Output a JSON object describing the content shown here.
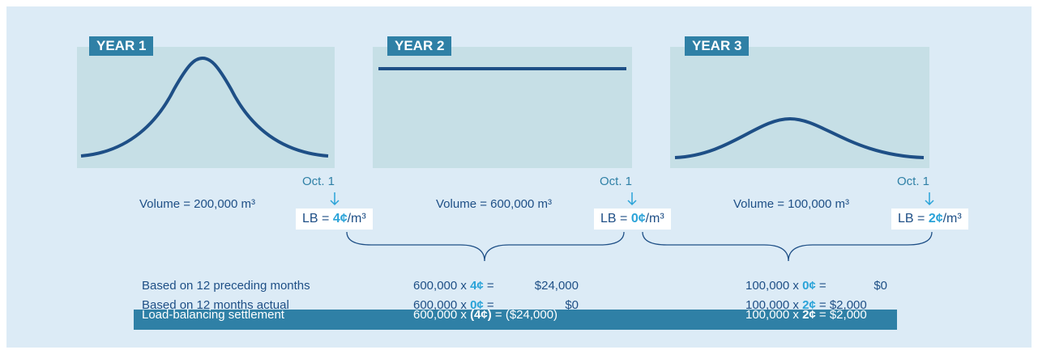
{
  "years": [
    {
      "label": "YEAR 1",
      "date": "Oct. 1",
      "volume": "Volume = 200,000 m³",
      "lb": {
        "prefix": "LB = ",
        "rate": "4¢",
        "unit": "/m³"
      }
    },
    {
      "label": "YEAR 2",
      "date": "Oct. 1",
      "volume": "Volume = 600,000 m³",
      "lb": {
        "prefix": "LB = ",
        "rate": "0¢",
        "unit": "/m³"
      }
    },
    {
      "label": "YEAR 3",
      "date": "Oct. 1",
      "volume": "Volume = 100,000 m³",
      "lb": {
        "prefix": "LB = ",
        "rate": "2¢",
        "unit": "/m³"
      }
    }
  ],
  "rows": [
    {
      "label": "Based on 12 preceding months",
      "calc1": {
        "prefix": "600,000 x ",
        "rate": "4¢",
        "suffix": " =",
        "result": "$24,000"
      },
      "calc2": {
        "prefix": "100,000 x ",
        "rate": "0¢",
        "suffix": " =",
        "result": "$0"
      }
    },
    {
      "label": "Based on 12 months actual",
      "calc1": {
        "prefix": "600,000 x ",
        "rate": "0¢",
        "suffix": " =",
        "result": "$0"
      },
      "calc2": {
        "prefix": "100,000 x ",
        "rate": "2¢",
        "suffix": " = $2,000"
      }
    },
    {
      "label": "Load-balancing settlement",
      "calc1": {
        "prefix": "600,000 x ",
        "rate": "(4¢)",
        "suffix": " = ($24,000)"
      },
      "calc2": {
        "prefix": "100,000 x ",
        "rate": "2¢",
        "suffix": " = $2,000"
      }
    }
  ]
}
